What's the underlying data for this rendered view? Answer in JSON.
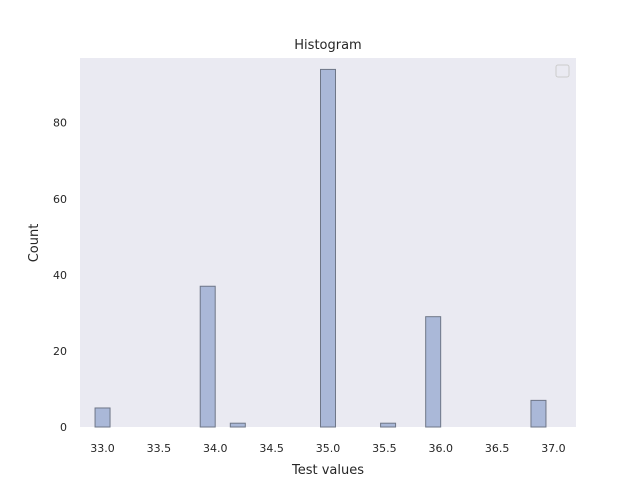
{
  "chart_data": {
    "type": "bar",
    "title": "Histogram",
    "xlabel": "Test values",
    "ylabel": "Count",
    "xlim": [
      32.8,
      37.2
    ],
    "ylim": [
      0,
      97
    ],
    "xticks": [
      33.0,
      33.5,
      34.0,
      34.5,
      35.0,
      35.5,
      36.0,
      36.5,
      37.0
    ],
    "xtick_labels": [
      "33.0",
      "33.5",
      "34.0",
      "34.5",
      "35.0",
      "35.5",
      "36.0",
      "36.5",
      "37.0"
    ],
    "yticks": [
      0,
      20,
      40,
      60,
      80
    ],
    "ytick_labels": [
      "0",
      "20",
      "40",
      "60",
      "80"
    ],
    "bin_width": 0.133,
    "bins": [
      {
        "x": 33.0,
        "count": 5
      },
      {
        "x": 33.933,
        "count": 37
      },
      {
        "x": 34.2,
        "count": 1
      },
      {
        "x": 35.0,
        "count": 94
      },
      {
        "x": 35.533,
        "count": 1
      },
      {
        "x": 35.933,
        "count": 29
      },
      {
        "x": 36.867,
        "count": 7
      }
    ],
    "grid": false,
    "legend": {
      "placement": "top-right",
      "entries": []
    },
    "colors": {
      "plot_background": "#EAEAF2",
      "bar_fill": "#AAB8D8",
      "bar_edge": "#6E7687",
      "text": "#262626"
    }
  }
}
